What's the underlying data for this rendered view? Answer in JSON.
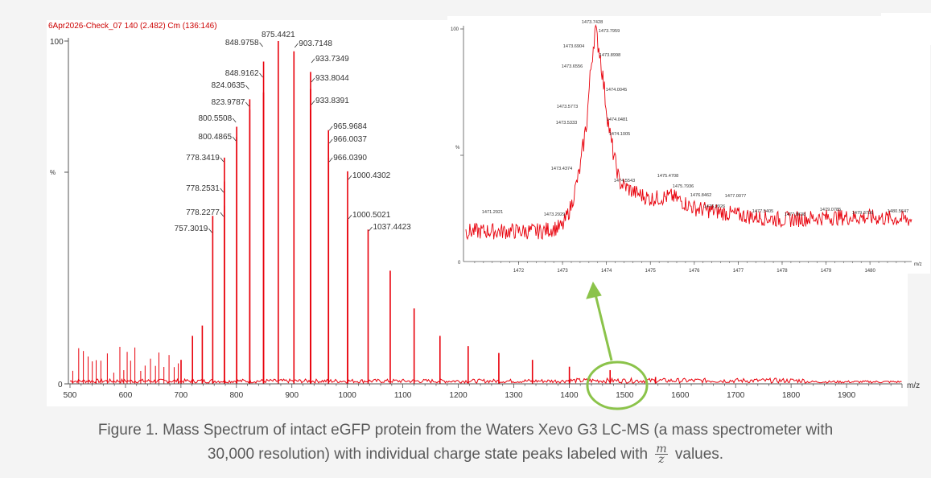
{
  "header_text": "6Apr2026-Check_07 140 (2.482) Cm (136:146)",
  "caption": {
    "line1": "Figure 1. Mass Spectrum of intact eGFP protein from the Waters Xevo G3 LC-MS (a mass spectrometer with",
    "line2_pre": "30,000 resolution) with individual charge state peaks labeled with",
    "frac_num": "m",
    "frac_den": "z",
    "line2_post": "values."
  },
  "colors": {
    "spectrum": "#e8000b",
    "callout": "#8bc34a",
    "axis": "#555555",
    "text": "#333333"
  },
  "chart_data": [
    {
      "type": "line",
      "xlabel": "m/z",
      "ylabel": "%",
      "xlim": [
        500,
        2000
      ],
      "ylim": [
        0,
        100
      ],
      "x_ticks": [
        500,
        600,
        700,
        800,
        900,
        1000,
        1100,
        1200,
        1300,
        1400,
        1500,
        1600,
        1700,
        1800,
        1900
      ],
      "y_ticks": [
        "0",
        "100"
      ],
      "grid": false,
      "peaks": [
        {
          "x": 700.2,
          "y": 7
        },
        {
          "x": 720.8,
          "y": 14
        },
        {
          "x": 738.5,
          "y": 17
        },
        {
          "x": 757.3019,
          "y": 49
        },
        {
          "x": 778.2277,
          "y": 52
        },
        {
          "x": 778.2531,
          "y": 59
        },
        {
          "x": 778.3419,
          "y": 66
        },
        {
          "x": 800.4865,
          "y": 72
        },
        {
          "x": 800.5508,
          "y": 75
        },
        {
          "x": 823.9787,
          "y": 80
        },
        {
          "x": 824.0635,
          "y": 83
        },
        {
          "x": 848.9162,
          "y": 85
        },
        {
          "x": 848.9758,
          "y": 94
        },
        {
          "x": 875.4421,
          "y": 100
        },
        {
          "x": 903.7148,
          "y": 97
        },
        {
          "x": 933.7349,
          "y": 91
        },
        {
          "x": 933.8044,
          "y": 86
        },
        {
          "x": 933.8391,
          "y": 80
        },
        {
          "x": 965.9684,
          "y": 74
        },
        {
          "x": 966.0037,
          "y": 70
        },
        {
          "x": 966.039,
          "y": 66
        },
        {
          "x": 1000.4302,
          "y": 62
        },
        {
          "x": 1000.5021,
          "y": 48
        },
        {
          "x": 1037.4423,
          "y": 45
        },
        {
          "x": 1077.3,
          "y": 33
        },
        {
          "x": 1120.4,
          "y": 22
        },
        {
          "x": 1167.0,
          "y": 14
        },
        {
          "x": 1217.8,
          "y": 11
        },
        {
          "x": 1273.1,
          "y": 9
        },
        {
          "x": 1333.7,
          "y": 7
        },
        {
          "x": 1400.3,
          "y": 5
        },
        {
          "x": 1473.7,
          "y": 4
        },
        {
          "x": 1555.6,
          "y": 2
        }
      ],
      "labels": [
        {
          "text": "757.3019",
          "x": 757.3019,
          "side": "left"
        },
        {
          "text": "778.2277",
          "x": 778.2277,
          "side": "left"
        },
        {
          "text": "778.2531",
          "x": 778.2531,
          "side": "left"
        },
        {
          "text": "778.3419",
          "x": 778.3419,
          "side": "left"
        },
        {
          "text": "800.4865",
          "x": 800.4865,
          "side": "left"
        },
        {
          "text": "800.5508",
          "x": 800.5508,
          "side": "left"
        },
        {
          "text": "823.9787",
          "x": 823.9787,
          "side": "left"
        },
        {
          "text": "824.0635",
          "x": 824.0635,
          "side": "left"
        },
        {
          "text": "848.9162",
          "x": 848.9162,
          "side": "left"
        },
        {
          "text": "848.9758",
          "x": 848.9758,
          "side": "left"
        },
        {
          "text": "875.4421",
          "x": 875.4421,
          "side": "top"
        },
        {
          "text": "903.7148",
          "x": 903.7148,
          "side": "right"
        },
        {
          "text": "933.7349",
          "x": 933.7349,
          "side": "right"
        },
        {
          "text": "933.8044",
          "x": 933.8044,
          "side": "right"
        },
        {
          "text": "933.8391",
          "x": 933.8391,
          "side": "right"
        },
        {
          "text": "965.9684",
          "x": 965.9684,
          "side": "right"
        },
        {
          "text": "966.0037",
          "x": 966.0037,
          "side": "right"
        },
        {
          "text": "966.0390",
          "x": 966.039,
          "side": "right"
        },
        {
          "text": "1000.4302",
          "x": 1000.4302,
          "side": "right"
        },
        {
          "text": "1000.5021",
          "x": 1000.5021,
          "side": "right"
        },
        {
          "text": "1037.4423",
          "x": 1037.4423,
          "side": "right"
        }
      ]
    },
    {
      "type": "line",
      "xlabel": "m/z",
      "ylabel": "%",
      "xlim": [
        1470.8,
        1480.95
      ],
      "ylim": [
        0,
        100
      ],
      "x_ticks": [
        "1472",
        "1473",
        "1474",
        "1475",
        "1476",
        "1477",
        "1478",
        "1479",
        "1480"
      ],
      "x_tick_values": [
        1472,
        1473,
        1474,
        1475,
        1476,
        1477,
        1478,
        1479,
        1480
      ],
      "y_ticks": [
        "0",
        "100"
      ],
      "grid": false,
      "profile": [
        {
          "x": 1470.8,
          "y": 13
        },
        {
          "x": 1472.5,
          "y": 13
        },
        {
          "x": 1473.0,
          "y": 15
        },
        {
          "x": 1473.2,
          "y": 24
        },
        {
          "x": 1473.4,
          "y": 40
        },
        {
          "x": 1473.55,
          "y": 60
        },
        {
          "x": 1473.65,
          "y": 84
        },
        {
          "x": 1473.74,
          "y": 100
        },
        {
          "x": 1473.85,
          "y": 90
        },
        {
          "x": 1474.0,
          "y": 66
        },
        {
          "x": 1474.1,
          "y": 52
        },
        {
          "x": 1474.3,
          "y": 34
        },
        {
          "x": 1474.6,
          "y": 30
        },
        {
          "x": 1475.0,
          "y": 27
        },
        {
          "x": 1475.5,
          "y": 28
        },
        {
          "x": 1476.0,
          "y": 23
        },
        {
          "x": 1477.0,
          "y": 20
        },
        {
          "x": 1478.0,
          "y": 18
        },
        {
          "x": 1479.0,
          "y": 19
        },
        {
          "x": 1480.0,
          "y": 19
        },
        {
          "x": 1480.95,
          "y": 18
        }
      ],
      "labels": [
        {
          "text": "1473.7428",
          "x": 1473.7428,
          "y": 101
        },
        {
          "text": "1473.7959",
          "x": 1473.7959,
          "y": 98
        },
        {
          "text": "1473.6904",
          "x": 1473.6904,
          "y": 91
        },
        {
          "text": "1473.8998",
          "x": 1473.8998,
          "y": 88
        },
        {
          "text": "1473.6556",
          "x": 1473.6556,
          "y": 83
        },
        {
          "text": "1474.0045",
          "x": 1474.0045,
          "y": 73
        },
        {
          "text": "1473.5773",
          "x": 1473.5773,
          "y": 65
        },
        {
          "text": "1474.0481",
          "x": 1474.0481,
          "y": 59
        },
        {
          "text": "1473.5333",
          "x": 1473.5333,
          "y": 58
        },
        {
          "text": "1474.1005",
          "x": 1474.1005,
          "y": 54
        },
        {
          "text": "1473.4374",
          "x": 1473.4374,
          "y": 39
        },
        {
          "text": "1474.5543",
          "x": 1474.5543,
          "y": 35
        },
        {
          "text": "1475.4708",
          "x": 1475.4708,
          "y": 38
        },
        {
          "text": "1475.7936",
          "x": 1475.7936,
          "y": 31
        },
        {
          "text": "1476.8462",
          "x": 1476.8462,
          "y": 28
        },
        {
          "text": "1477.0077",
          "x": 1477.0077,
          "y": 27
        },
        {
          "text": "1476.9926",
          "x": 1476.9926,
          "y": 24
        },
        {
          "text": "1471.2921",
          "x": 1471.2921,
          "y": 22
        },
        {
          "text": "1473.2929",
          "x": 1473.2929,
          "y": 20
        },
        {
          "text": "1477.5405",
          "x": 1477.5405,
          "y": 21
        },
        {
          "text": "1477.8638",
          "x": 1477.8638,
          "y": 20
        },
        {
          "text": "1479.0785",
          "x": 1479.0785,
          "y": 22
        },
        {
          "text": "1479.3756",
          "x": 1479.3756,
          "y": 20
        },
        {
          "text": "1480.5647",
          "x": 1480.5647,
          "y": 22
        }
      ]
    }
  ]
}
